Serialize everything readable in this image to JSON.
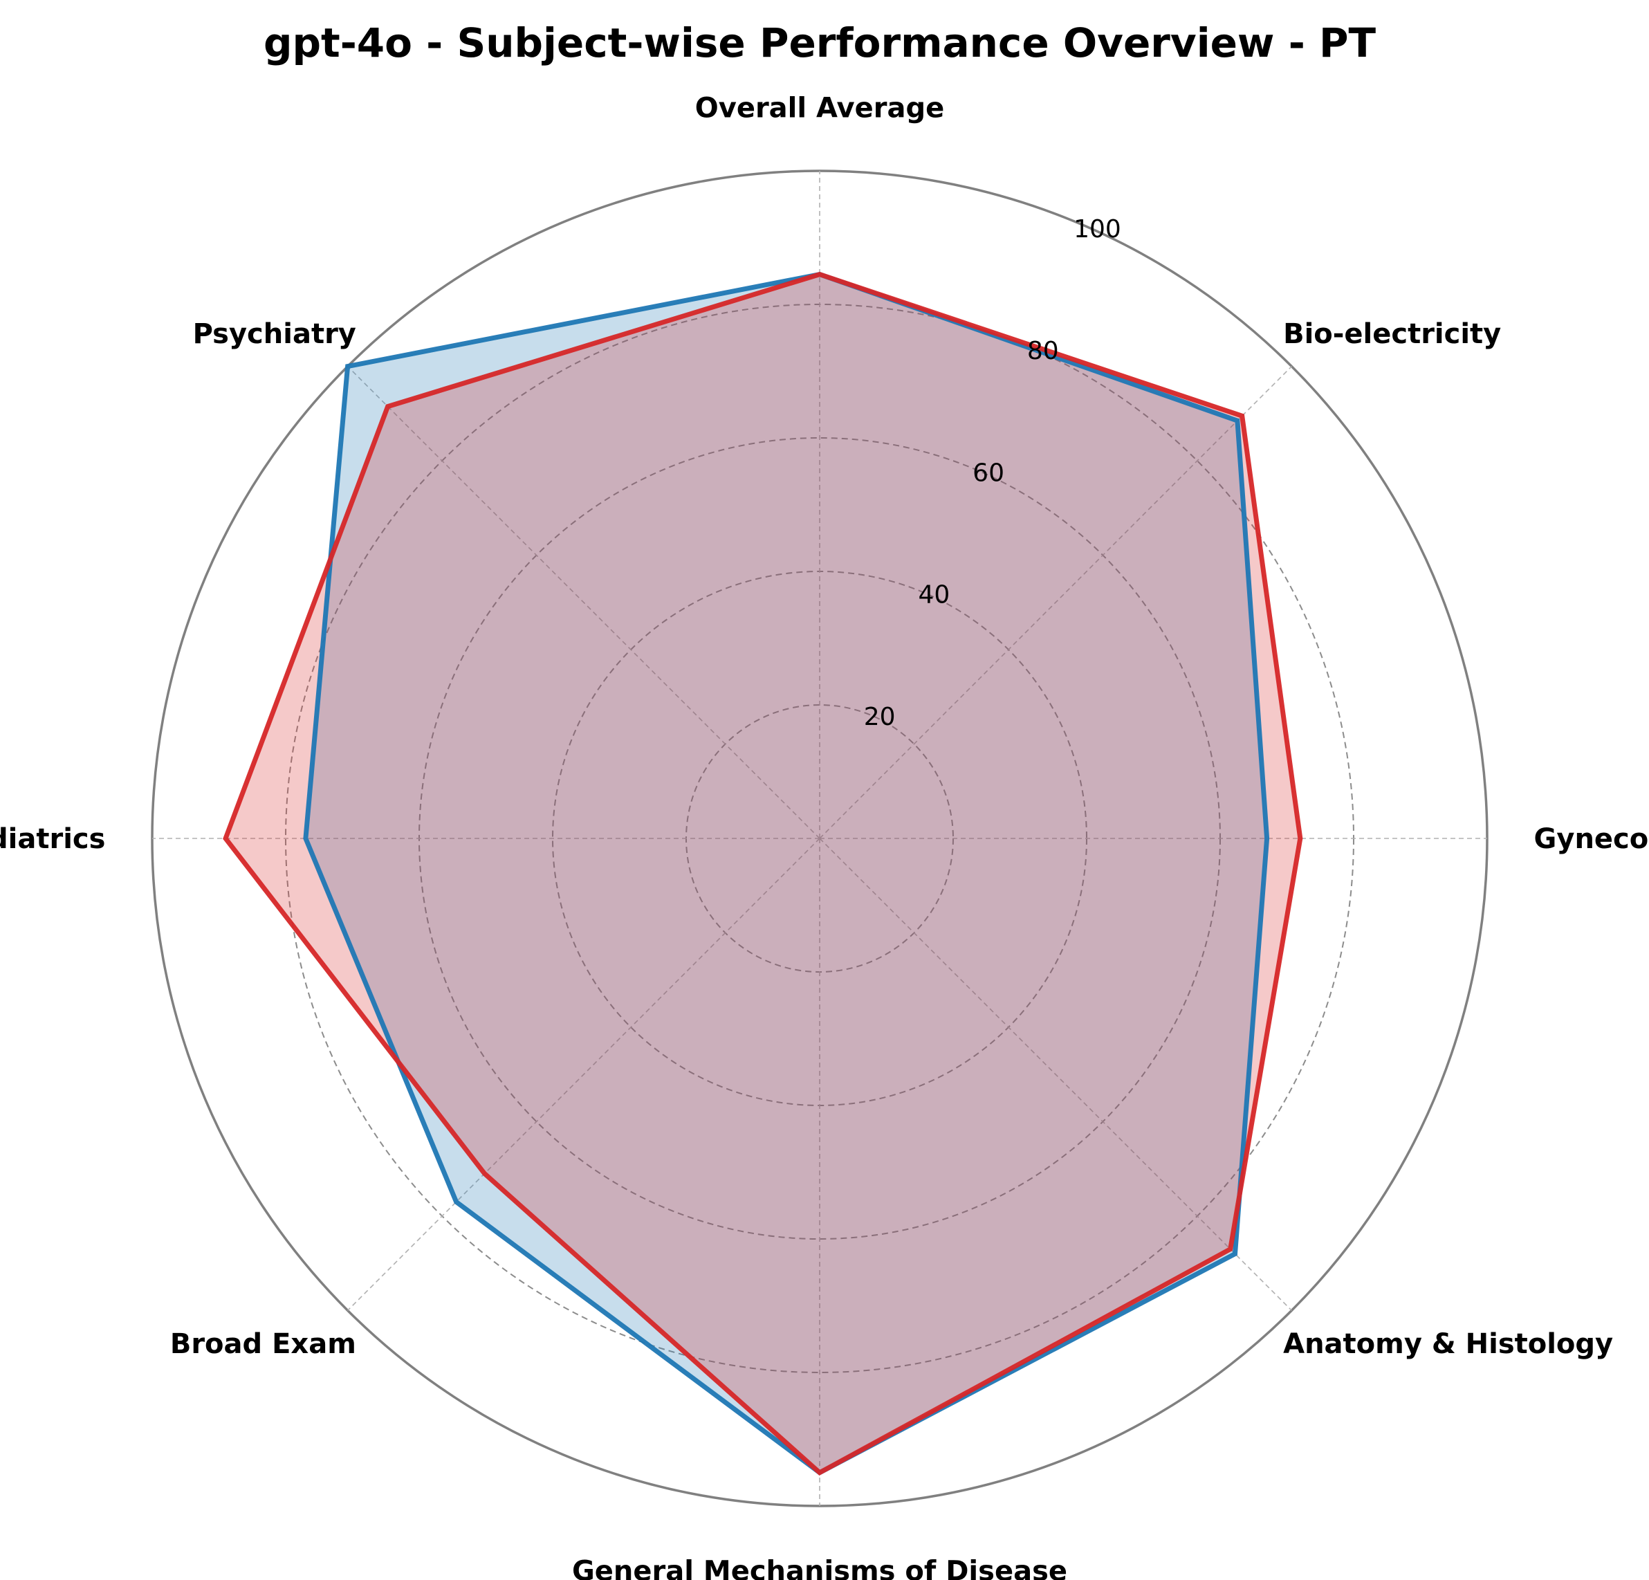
{
  "chart_data": {
    "type": "radar",
    "title": "gpt-4o - Subject-wise Performance Overview - PT",
    "categories": [
      "Overall Average",
      "Bio-electricity",
      "Gynecology",
      "Anatomy & Histology",
      "General Mechanisms of Disease",
      "Broad Exam",
      "Pediatrics",
      "Psychiatry"
    ],
    "rlim": [
      0,
      100
    ],
    "r_ticks": [
      20,
      40,
      60,
      80,
      100
    ],
    "grid": true,
    "series": [
      {
        "values": [
          84.5,
          88.5,
          67,
          88,
          95,
          77,
          77,
          100
        ],
        "color": "#1f77b4"
      },
      {
        "values": [
          84.5,
          89.5,
          72,
          87,
          95,
          71,
          89,
          91.5
        ],
        "color": "#d62728"
      }
    ]
  }
}
